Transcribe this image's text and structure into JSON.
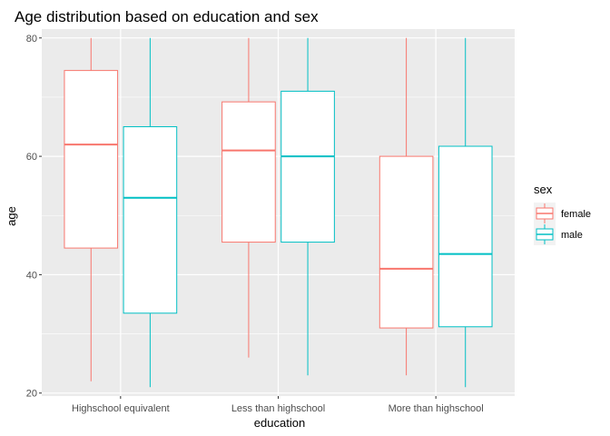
{
  "chart_data": {
    "type": "boxplot",
    "title": "Age distribution based on education and sex",
    "xlabel": "education",
    "ylabel": "age",
    "ylim": [
      19.5,
      81.5
    ],
    "yticks": [
      20,
      40,
      60,
      80
    ],
    "grid": true,
    "legend": {
      "title": "sex",
      "position": "right"
    },
    "categories": [
      "Highschool equivalent",
      "Less than highschool",
      "More than highschool"
    ],
    "series": [
      {
        "name": "female",
        "color": "#F8766D",
        "boxes": [
          {
            "min": 22,
            "q1": 44.5,
            "median": 62,
            "q3": 74.5,
            "max": 80
          },
          {
            "min": 26,
            "q1": 45.5,
            "median": 61,
            "q3": 69.2,
            "max": 80
          },
          {
            "min": 23,
            "q1": 31,
            "median": 41,
            "q3": 60,
            "max": 80
          }
        ]
      },
      {
        "name": "male",
        "color": "#00BFC4",
        "boxes": [
          {
            "min": 21,
            "q1": 33.5,
            "median": 53,
            "q3": 65,
            "max": 80
          },
          {
            "min": 23,
            "q1": 45.5,
            "median": 60,
            "q3": 71,
            "max": 80
          },
          {
            "min": 21,
            "q1": 31.2,
            "median": 43.5,
            "q3": 61.7,
            "max": 80
          }
        ]
      }
    ]
  }
}
